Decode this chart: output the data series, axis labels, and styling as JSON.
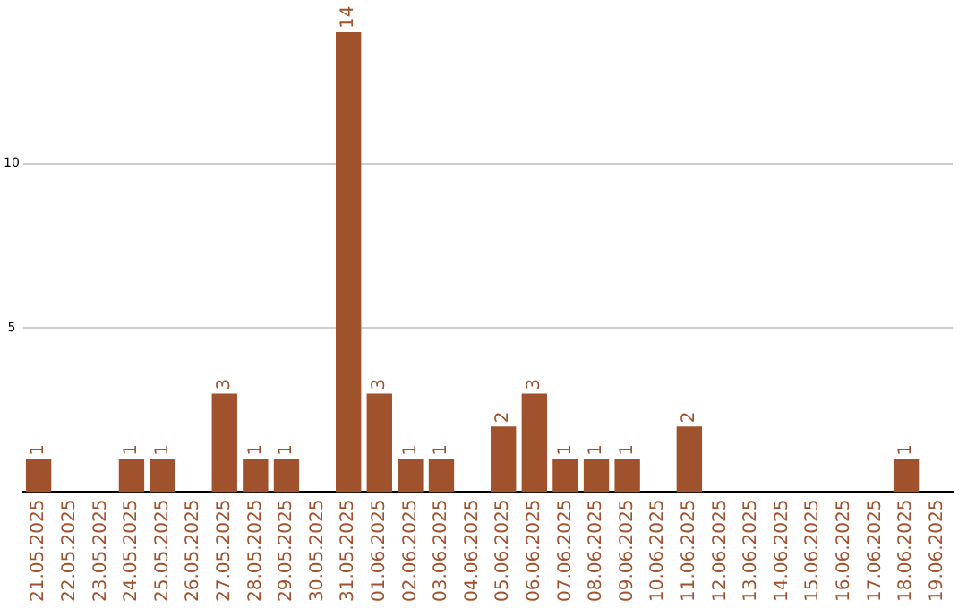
{
  "chart_data": {
    "type": "bar",
    "categories": [
      "21.05.2025",
      "22.05.2025",
      "23.05.2025",
      "24.05.2025",
      "25.05.2025",
      "26.05.2025",
      "27.05.2025",
      "28.05.2025",
      "29.05.2025",
      "30.05.2025",
      "31.05.2025",
      "01.06.2025",
      "02.06.2025",
      "03.06.2025",
      "04.06.2025",
      "05.06.2025",
      "06.06.2025",
      "07.06.2025",
      "08.06.2025",
      "09.06.2025",
      "10.06.2025",
      "11.06.2025",
      "12.06.2025",
      "13.06.2025",
      "14.06.2025",
      "15.06.2025",
      "16.06.2025",
      "17.06.2025",
      "18.06.2025",
      "19.06.2025"
    ],
    "values": [
      1,
      0,
      0,
      1,
      1,
      0,
      3,
      1,
      1,
      0,
      14,
      3,
      1,
      1,
      0,
      2,
      3,
      1,
      1,
      1,
      0,
      2,
      0,
      0,
      0,
      0,
      0,
      0,
      1,
      0
    ],
    "value_labels": [
      "1",
      null,
      null,
      "1",
      "1",
      null,
      "3",
      "1",
      "1",
      null,
      "14",
      "3",
      "1",
      "1",
      null,
      "2",
      "3",
      "1",
      "1",
      "1",
      null,
      "2",
      null,
      null,
      null,
      null,
      null,
      null,
      "1",
      null
    ],
    "color": "#a0522d",
    "ylim": [
      0,
      14
    ],
    "yticks": [
      5,
      10
    ],
    "grid": "y",
    "legend": false
  }
}
